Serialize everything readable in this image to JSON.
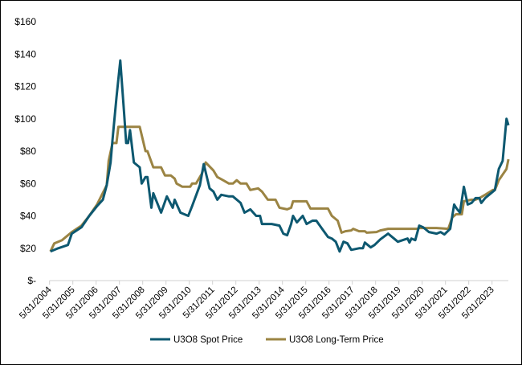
{
  "chart_data": {
    "type": "line",
    "title": "",
    "xlabel": "",
    "ylabel": "",
    "ylim": [
      0,
      160
    ],
    "y_ticks": [
      "$-",
      "$20",
      "$40",
      "$60",
      "$80",
      "$100",
      "$120",
      "$140",
      "$160"
    ],
    "x_ticks": [
      "5/31/2004",
      "5/31/2005",
      "5/31/2006",
      "5/31/2007",
      "5/31/2008",
      "5/31/2009",
      "5/31/2010",
      "5/31/2011",
      "5/31/2012",
      "5/31/2013",
      "5/31/2014",
      "5/31/2015",
      "5/31/2016",
      "5/31/2017",
      "5/31/2018",
      "5/31/2019",
      "5/31/2020",
      "5/31/2021",
      "5/31/2022",
      "5/31/2023"
    ],
    "grid": false,
    "legend": "bottom",
    "series": [
      {
        "name": "U3O8 Spot Price",
        "color": "#0d5870",
        "points": [
          [
            "2004-06",
            18
          ],
          [
            "2004-10",
            20
          ],
          [
            "2005-03",
            22
          ],
          [
            "2005-05",
            29
          ],
          [
            "2005-10",
            33
          ],
          [
            "2006-02",
            40
          ],
          [
            "2006-06",
            46
          ],
          [
            "2006-09",
            50
          ],
          [
            "2006-11",
            59
          ],
          [
            "2007-01",
            73
          ],
          [
            "2007-02",
            87
          ],
          [
            "2007-04",
            113
          ],
          [
            "2007-06",
            136
          ],
          [
            "2007-08",
            103
          ],
          [
            "2007-09",
            85
          ],
          [
            "2007-10",
            85
          ],
          [
            "2007-11",
            93
          ],
          [
            "2008-01",
            73
          ],
          [
            "2008-04",
            70
          ],
          [
            "2008-05",
            60
          ],
          [
            "2008-07",
            64
          ],
          [
            "2008-08",
            64
          ],
          [
            "2008-10",
            45
          ],
          [
            "2008-11",
            54
          ],
          [
            "2009-03",
            42
          ],
          [
            "2009-06",
            52
          ],
          [
            "2009-09",
            45
          ],
          [
            "2009-10",
            50
          ],
          [
            "2010-01",
            42
          ],
          [
            "2010-05",
            40
          ],
          [
            "2010-07",
            46
          ],
          [
            "2010-11",
            59
          ],
          [
            "2011-01",
            72
          ],
          [
            "2011-04",
            57
          ],
          [
            "2011-06",
            55
          ],
          [
            "2011-08",
            50
          ],
          [
            "2011-10",
            53
          ],
          [
            "2012-02",
            52
          ],
          [
            "2012-04",
            52
          ],
          [
            "2012-08",
            48
          ],
          [
            "2012-10",
            42
          ],
          [
            "2013-01",
            44
          ],
          [
            "2013-04",
            40
          ],
          [
            "2013-06",
            40
          ],
          [
            "2013-07",
            35
          ],
          [
            "2013-12",
            35
          ],
          [
            "2014-04",
            34
          ],
          [
            "2014-06",
            29
          ],
          [
            "2014-08",
            28
          ],
          [
            "2014-10",
            35
          ],
          [
            "2014-11",
            40
          ],
          [
            "2015-01",
            36
          ],
          [
            "2015-04",
            40
          ],
          [
            "2015-06",
            35
          ],
          [
            "2015-09",
            37
          ],
          [
            "2015-11",
            37
          ],
          [
            "2016-02",
            32
          ],
          [
            "2016-05",
            27
          ],
          [
            "2016-07",
            26
          ],
          [
            "2016-09",
            24
          ],
          [
            "2016-11",
            18
          ],
          [
            "2017-01",
            24
          ],
          [
            "2017-03",
            23
          ],
          [
            "2017-05",
            19
          ],
          [
            "2017-09",
            20
          ],
          [
            "2017-11",
            20
          ],
          [
            "2017-12",
            23.5
          ],
          [
            "2018-03",
            20.5
          ],
          [
            "2018-05",
            22
          ],
          [
            "2018-08",
            25.5
          ],
          [
            "2018-12",
            29
          ],
          [
            "2019-03",
            26
          ],
          [
            "2019-05",
            24
          ],
          [
            "2019-10",
            26
          ],
          [
            "2019-11",
            23.5
          ],
          [
            "2019-12",
            26
          ],
          [
            "2020-02",
            25
          ],
          [
            "2020-04",
            34
          ],
          [
            "2020-06",
            33
          ],
          [
            "2020-09",
            30
          ],
          [
            "2021-01",
            29
          ],
          [
            "2021-03",
            30
          ],
          [
            "2021-05",
            28.5
          ],
          [
            "2021-08",
            32
          ],
          [
            "2021-10",
            47
          ],
          [
            "2021-11",
            45
          ],
          [
            "2022-01",
            42
          ],
          [
            "2022-03",
            58
          ],
          [
            "2022-05",
            47
          ],
          [
            "2022-07",
            48
          ],
          [
            "2022-09",
            51
          ],
          [
            "2022-11",
            51
          ],
          [
            "2022-12",
            48
          ],
          [
            "2023-02",
            51
          ],
          [
            "2023-04",
            53
          ],
          [
            "2023-07",
            56
          ],
          [
            "2023-09",
            69
          ],
          [
            "2023-11",
            74
          ],
          [
            "2024-01",
            100
          ],
          [
            "2024-02",
            96
          ]
        ]
      },
      {
        "name": "U3O8 Long-Term Price",
        "color": "#9b8443",
        "points": [
          [
            "2004-06",
            18
          ],
          [
            "2004-08",
            23
          ],
          [
            "2004-12",
            25
          ],
          [
            "2005-05",
            30
          ],
          [
            "2005-10",
            34
          ],
          [
            "2006-02",
            40
          ],
          [
            "2006-06",
            47
          ],
          [
            "2006-11",
            59
          ],
          [
            "2006-12",
            74
          ],
          [
            "2007-02",
            85
          ],
          [
            "2007-04",
            85
          ],
          [
            "2007-05",
            95
          ],
          [
            "2008-04",
            95
          ],
          [
            "2008-05",
            90
          ],
          [
            "2008-07",
            80
          ],
          [
            "2008-08",
            80
          ],
          [
            "2008-11",
            70
          ],
          [
            "2009-03",
            70
          ],
          [
            "2009-05",
            65
          ],
          [
            "2009-08",
            65
          ],
          [
            "2009-10",
            63
          ],
          [
            "2009-11",
            60
          ],
          [
            "2010-02",
            58
          ],
          [
            "2010-06",
            58
          ],
          [
            "2010-07",
            60
          ],
          [
            "2010-09",
            60
          ],
          [
            "2010-12",
            66
          ],
          [
            "2011-02",
            73
          ],
          [
            "2011-06",
            68
          ],
          [
            "2011-08",
            64
          ],
          [
            "2011-11",
            62
          ],
          [
            "2012-02",
            60
          ],
          [
            "2012-04",
            60
          ],
          [
            "2012-06",
            62
          ],
          [
            "2012-08",
            60
          ],
          [
            "2012-11",
            60
          ],
          [
            "2013-01",
            56
          ],
          [
            "2013-05",
            57
          ],
          [
            "2013-07",
            55
          ],
          [
            "2013-10",
            50
          ],
          [
            "2014-02",
            50
          ],
          [
            "2014-04",
            45
          ],
          [
            "2014-08",
            44
          ],
          [
            "2014-10",
            45
          ],
          [
            "2014-11",
            49
          ],
          [
            "2015-06",
            49
          ],
          [
            "2015-08",
            44.5
          ],
          [
            "2016-05",
            44.5
          ],
          [
            "2016-07",
            40
          ],
          [
            "2016-10",
            37
          ],
          [
            "2016-12",
            29.6
          ],
          [
            "2017-02",
            30.5
          ],
          [
            "2017-05",
            31
          ],
          [
            "2017-06",
            32
          ],
          [
            "2017-09",
            30.5
          ],
          [
            "2017-12",
            30.5
          ],
          [
            "2018-01",
            29.6
          ],
          [
            "2018-06",
            30
          ],
          [
            "2018-08",
            31
          ],
          [
            "2018-12",
            32
          ],
          [
            "2020-03",
            32
          ],
          [
            "2020-04",
            32.5
          ],
          [
            "2021-01",
            32.5
          ],
          [
            "2021-07",
            32
          ],
          [
            "2021-09",
            39
          ],
          [
            "2021-11",
            41
          ],
          [
            "2022-02",
            41
          ],
          [
            "2022-03",
            49
          ],
          [
            "2022-07",
            50
          ],
          [
            "2022-09",
            50
          ],
          [
            "2022-11",
            51
          ],
          [
            "2023-02",
            53
          ],
          [
            "2023-06",
            56
          ],
          [
            "2023-07",
            56
          ],
          [
            "2023-09",
            62
          ],
          [
            "2024-01",
            69
          ],
          [
            "2024-02",
            75
          ]
        ]
      }
    ]
  }
}
